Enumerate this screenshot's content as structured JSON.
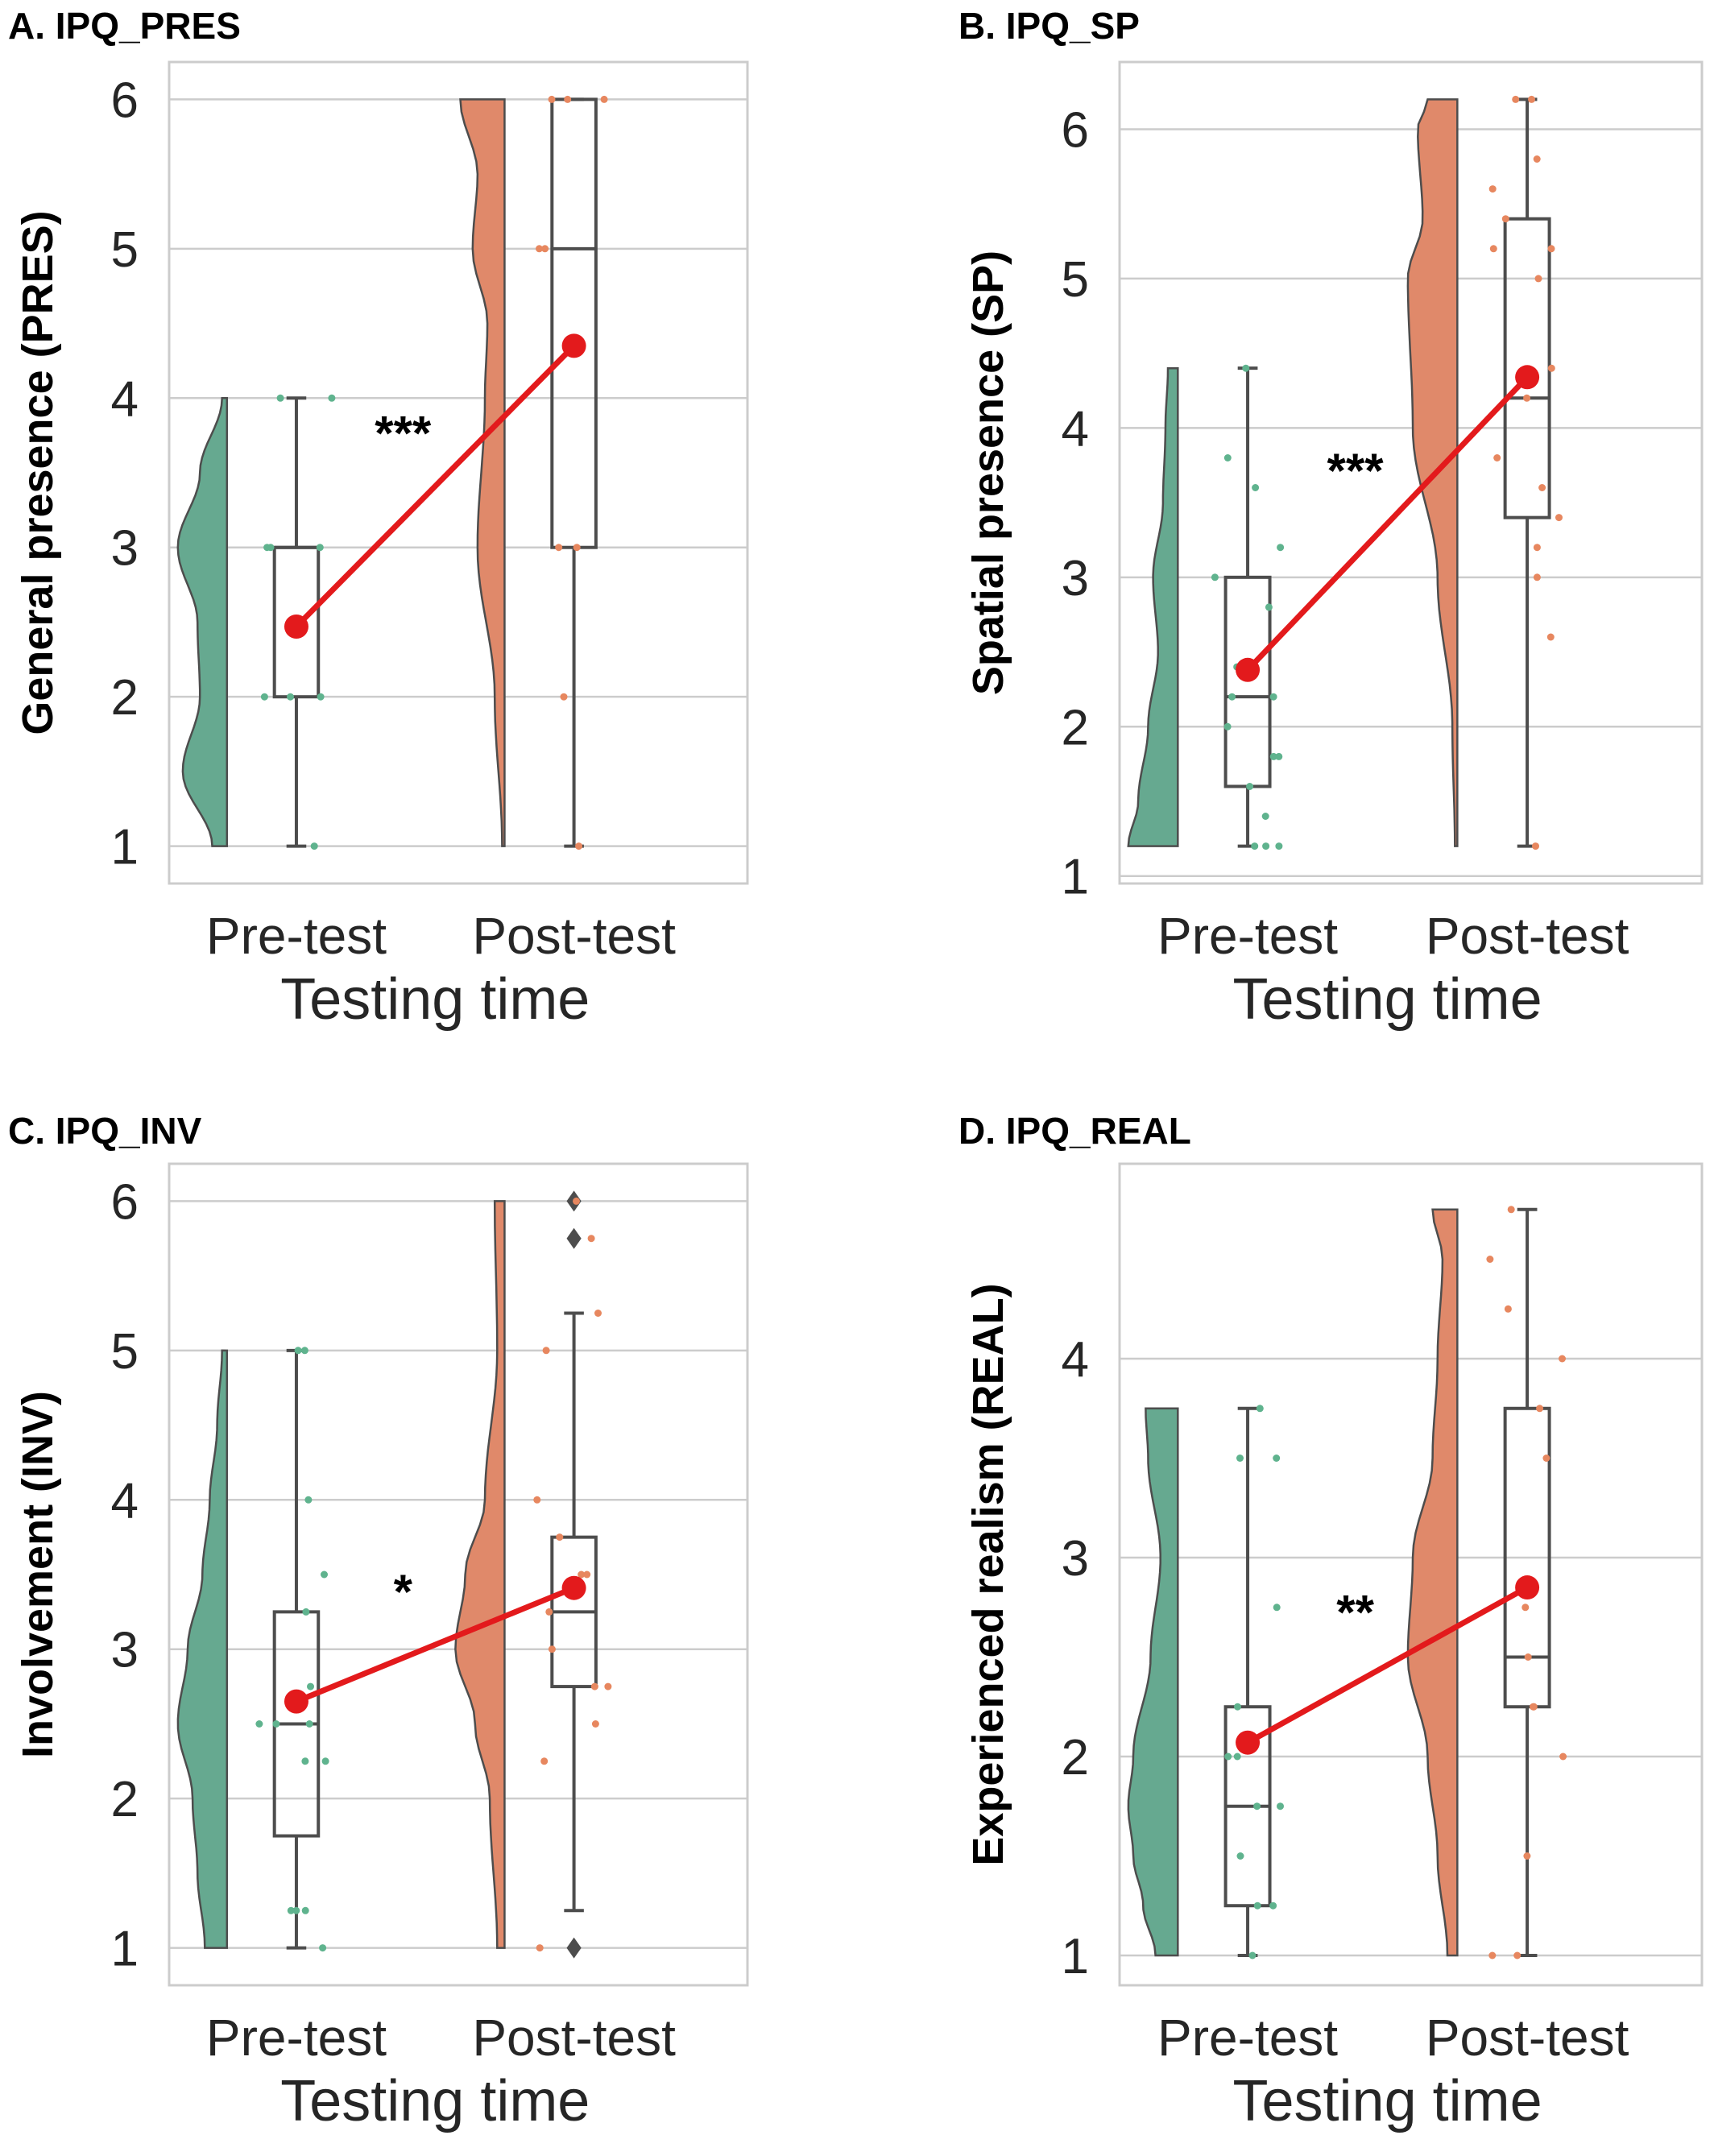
{
  "colors": {
    "pre": "#66a990",
    "post": "#e0896a",
    "pre_dot": "#5fb38e",
    "post_dot": "#e7875f",
    "mean_line": "#e31a1c",
    "box": "#4d4d4d",
    "grid": "#cccccc",
    "spine": "#cccccc",
    "text": "#262626"
  },
  "chart_data": [
    {
      "type": "raincloud",
      "panel": "A.",
      "title": "IPQ_PRES",
      "xlabel": "Testing time",
      "ylabel": "General presence (PRES)",
      "categories": [
        "Pre-test",
        "Post-test"
      ],
      "ylim": [
        0.75,
        6.25
      ],
      "yticks": [
        1,
        2,
        3,
        4,
        5,
        6
      ],
      "grid": true,
      "boxes": [
        {
          "min": 1,
          "q1": 2,
          "median": 3,
          "q3": 3,
          "max": 4,
          "outliers": []
        },
        {
          "min": 1,
          "q1": 3,
          "median": 5,
          "q3": 6,
          "max": 6,
          "outliers": []
        }
      ],
      "means": [
        2.47,
        4.35
      ],
      "significance": "***",
      "points": [
        [
          1,
          2,
          2,
          2,
          3,
          3,
          3,
          4,
          4
        ],
        [
          1,
          2,
          3,
          3,
          5,
          5,
          6,
          6,
          6
        ]
      ],
      "density": [
        {
          "range": [
            1,
            4
          ],
          "y": [
            1,
            1.5,
            2,
            2.5,
            3,
            3.5,
            4
          ],
          "w": [
            0.3,
            0.9,
            0.55,
            0.6,
            1,
            0.55,
            0.1
          ]
        },
        {
          "range": [
            1,
            6
          ],
          "y": [
            1,
            2,
            3,
            4,
            4.5,
            5,
            5.5,
            6
          ],
          "w": [
            0.05,
            0.2,
            0.55,
            0.4,
            0.35,
            0.65,
            0.55,
            0.9
          ]
        }
      ]
    },
    {
      "type": "raincloud",
      "panel": "B.",
      "title": "IPQ_SP",
      "xlabel": "Testing time",
      "ylabel": "Spatial presence (SP)",
      "categories": [
        "Pre-test",
        "Post-test"
      ],
      "ylim": [
        0.95,
        6.45
      ],
      "yticks": [
        1,
        2,
        3,
        4,
        5,
        6
      ],
      "grid": true,
      "boxes": [
        {
          "min": 1.2,
          "q1": 1.6,
          "median": 2.2,
          "q3": 3.0,
          "max": 4.4,
          "outliers": []
        },
        {
          "min": 1.2,
          "q1": 3.4,
          "median": 4.2,
          "q3": 5.4,
          "max": 6.2,
          "outliers": []
        }
      ],
      "means": [
        2.38,
        4.34
      ],
      "significance": "***",
      "points": [
        [
          1.2,
          1.2,
          1.2,
          1.4,
          1.6,
          1.8,
          1.8,
          2.0,
          2.2,
          2.2,
          2.4,
          2.8,
          3.0,
          3.2,
          3.6,
          3.8,
          4.4
        ],
        [
          1.2,
          2.6,
          3.0,
          3.2,
          3.4,
          3.6,
          3.8,
          4.2,
          4.4,
          5.0,
          5.2,
          5.2,
          5.4,
          5.6,
          5.8,
          6.2,
          6.2
        ]
      ],
      "density": [
        {
          "range": [
            1.2,
            4.4
          ],
          "y": [
            1.2,
            1.5,
            2.0,
            2.5,
            3.0,
            3.5,
            4.0,
            4.4
          ],
          "w": [
            1,
            0.8,
            0.6,
            0.4,
            0.5,
            0.3,
            0.25,
            0.2
          ]
        },
        {
          "range": [
            1.2,
            6.2
          ],
          "y": [
            1.2,
            2.0,
            3.0,
            4.0,
            5.0,
            5.4,
            6.0,
            6.2
          ],
          "w": [
            0.05,
            0.1,
            0.4,
            0.9,
            1,
            0.7,
            0.8,
            0.6
          ]
        }
      ]
    },
    {
      "type": "raincloud",
      "panel": "C.",
      "title": "IPQ_INV",
      "xlabel": "Testing time",
      "ylabel": "Involvement (INV)",
      "categories": [
        "Pre-test",
        "Post-test"
      ],
      "ylim": [
        0.75,
        6.25
      ],
      "yticks": [
        1,
        2,
        3,
        4,
        5,
        6
      ],
      "grid": true,
      "boxes": [
        {
          "min": 1,
          "q1": 1.75,
          "median": 2.5,
          "q3": 3.25,
          "max": 5,
          "outliers": []
        },
        {
          "min": 1.25,
          "q1": 2.75,
          "median": 3.25,
          "q3": 3.75,
          "max": 5.25,
          "outliers": [
            1,
            5.75,
            6
          ]
        }
      ],
      "means": [
        2.65,
        3.41
      ],
      "significance": "*",
      "points": [
        [
          1,
          1.25,
          1.25,
          1.25,
          2.25,
          2.25,
          2.5,
          2.5,
          2.5,
          2.75,
          3.25,
          3.5,
          4,
          5,
          5
        ],
        [
          1,
          2.25,
          2.5,
          2.75,
          2.75,
          3,
          3.25,
          3.5,
          3.5,
          3.75,
          4,
          5,
          5.25,
          5.75,
          6
        ]
      ],
      "density": [
        {
          "range": [
            1,
            5
          ],
          "y": [
            1,
            1.5,
            2,
            2.5,
            3,
            3.5,
            4,
            4.5,
            5
          ],
          "w": [
            0.45,
            0.6,
            0.7,
            1,
            0.8,
            0.5,
            0.35,
            0.2,
            0.1
          ]
        },
        {
          "range": [
            1,
            6
          ],
          "y": [
            1,
            2,
            2.5,
            3,
            3.5,
            4,
            5,
            6
          ],
          "w": [
            0.15,
            0.3,
            0.6,
            1,
            0.8,
            0.4,
            0.15,
            0.2
          ]
        }
      ]
    },
    {
      "type": "raincloud",
      "panel": "D.",
      "title": "IPQ_REAL",
      "xlabel": "Testing time",
      "ylabel": "Experienced realism (REAL)",
      "categories": [
        "Pre-test",
        "Post-test"
      ],
      "ylim": [
        0.85,
        4.98
      ],
      "yticks": [
        1,
        2,
        3,
        4
      ],
      "grid": true,
      "boxes": [
        {
          "min": 1,
          "q1": 1.25,
          "median": 1.75,
          "q3": 2.25,
          "max": 3.75,
          "outliers": []
        },
        {
          "min": 1,
          "q1": 2.25,
          "median": 2.5,
          "q3": 3.75,
          "max": 4.75,
          "outliers": []
        }
      ],
      "means": [
        2.07,
        2.85
      ],
      "significance": "**",
      "points": [
        [
          1,
          1.25,
          1.25,
          1.5,
          1.75,
          1.75,
          2,
          2,
          2.25,
          2.75,
          3.5,
          3.5,
          3.75
        ],
        [
          1,
          1,
          1.5,
          2,
          2.25,
          2.25,
          2.5,
          2.75,
          3.5,
          3.75,
          4,
          4.25,
          4.5,
          4.75
        ]
      ],
      "density": [
        {
          "range": [
            1,
            3.75
          ],
          "y": [
            1,
            1.25,
            1.5,
            1.75,
            2,
            2.5,
            3,
            3.5,
            3.75
          ],
          "w": [
            0.45,
            0.7,
            0.9,
            1,
            0.9,
            0.55,
            0.35,
            0.6,
            0.65
          ]
        },
        {
          "range": [
            1,
            4.75
          ],
          "y": [
            1,
            1.5,
            2,
            2.5,
            3,
            3.5,
            4,
            4.5,
            4.75
          ],
          "w": [
            0.2,
            0.4,
            0.6,
            1,
            0.9,
            0.5,
            0.4,
            0.3,
            0.5
          ]
        }
      ]
    }
  ]
}
